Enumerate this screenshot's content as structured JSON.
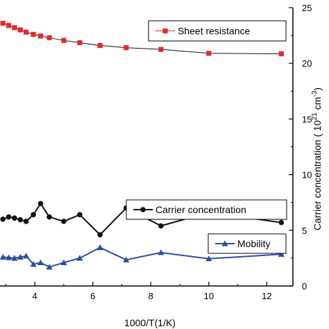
{
  "chart_data": {
    "type": "line",
    "xlabel": "1000/T(1/K)",
    "ylabel_right": "Carrier concentration ( 10",
    "ylabel_right_sup": "21",
    "ylabel_right_unit": " cm",
    "ylabel_right_sup2": "-3",
    "ylabel_right_end": ")",
    "xlim": [
      2.8,
      12.9
    ],
    "ylim": [
      0,
      25
    ],
    "x_ticks": [
      4,
      6,
      8,
      10,
      12
    ],
    "y_ticks": [
      0,
      5,
      10,
      15,
      20,
      25
    ],
    "grid": false,
    "series": [
      {
        "name": "Sheet resistance",
        "color": "#e8282b",
        "marker": "square",
        "x": [
          2.9,
          3.1,
          3.3,
          3.5,
          3.7,
          3.95,
          4.2,
          4.5,
          5.0,
          5.55,
          6.25,
          7.15,
          8.35,
          10.0,
          12.5
        ],
        "y": [
          23.6,
          23.4,
          23.2,
          23.0,
          22.8,
          22.6,
          22.45,
          22.3,
          22.05,
          21.85,
          21.6,
          21.4,
          21.25,
          20.9,
          20.85
        ]
      },
      {
        "name": "Carrier concentration",
        "color": "#111111",
        "marker": "circle",
        "x": [
          2.9,
          3.1,
          3.3,
          3.5,
          3.7,
          3.95,
          4.2,
          4.5,
          5.0,
          5.55,
          6.25,
          7.15,
          8.35,
          10.0,
          12.5
        ],
        "y": [
          6.0,
          6.2,
          6.1,
          5.95,
          5.8,
          6.4,
          7.4,
          6.2,
          5.8,
          6.4,
          4.6,
          7.0,
          5.4,
          6.6,
          5.7
        ]
      },
      {
        "name": "Mobility",
        "color": "#2c4ea2",
        "marker": "triangle",
        "x": [
          2.9,
          3.1,
          3.3,
          3.5,
          3.7,
          3.95,
          4.2,
          4.5,
          5.0,
          5.55,
          6.25,
          7.15,
          8.35,
          10.0,
          12.5
        ],
        "y": [
          2.6,
          2.55,
          2.5,
          2.6,
          2.7,
          1.95,
          2.1,
          1.7,
          2.1,
          2.5,
          3.45,
          2.35,
          3.0,
          2.45,
          2.85
        ]
      }
    ],
    "legends": [
      {
        "series": 0,
        "label": "Sheet resistance"
      },
      {
        "series": 1,
        "label": "Carrier concentration"
      },
      {
        "series": 2,
        "label": "Mobility"
      }
    ]
  }
}
